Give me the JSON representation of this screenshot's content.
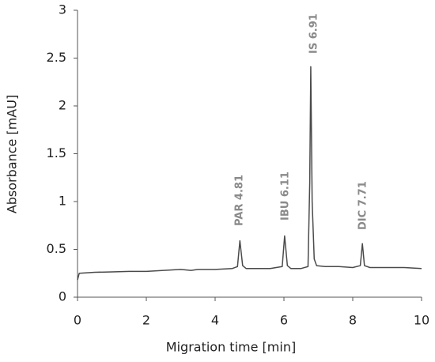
{
  "chart_data": {
    "type": "line",
    "xlabel": "Migration time [min]",
    "ylabel": "Absorbance [mAU]",
    "x": [
      0,
      0.05,
      0.5,
      1,
      1.5,
      2,
      2.5,
      3,
      3.3,
      3.5,
      4,
      4.5,
      4.65,
      4.72,
      4.8,
      4.9,
      5.2,
      5.6,
      5.95,
      6.02,
      6.1,
      6.2,
      6.5,
      6.7,
      6.75,
      6.78,
      6.82,
      6.88,
      6.95,
      7.2,
      7.6,
      8.0,
      8.22,
      8.28,
      8.34,
      8.5,
      9,
      9.5,
      10
    ],
    "values": [
      0.18,
      0.25,
      0.26,
      0.265,
      0.27,
      0.27,
      0.28,
      0.29,
      0.28,
      0.29,
      0.29,
      0.3,
      0.32,
      0.59,
      0.33,
      0.3,
      0.3,
      0.3,
      0.32,
      0.64,
      0.33,
      0.3,
      0.3,
      0.32,
      1.2,
      2.41,
      1.0,
      0.4,
      0.33,
      0.32,
      0.32,
      0.31,
      0.33,
      0.56,
      0.33,
      0.31,
      0.31,
      0.31,
      0.3
    ],
    "color": "#4a4a4a",
    "annotations": [
      "PAR 4.81",
      "IBU 6.11",
      "IS 6.91",
      "DIC 7.71"
    ],
    "annotation_color": "#8a8a8a",
    "xlim": [
      0,
      10
    ],
    "xticks": [
      0,
      2,
      4,
      6,
      8,
      10
    ],
    "ylim": [
      0,
      3
    ],
    "yticks": [
      0,
      0.5,
      1,
      1.5,
      2,
      2.5,
      3
    ],
    "grid": false
  }
}
